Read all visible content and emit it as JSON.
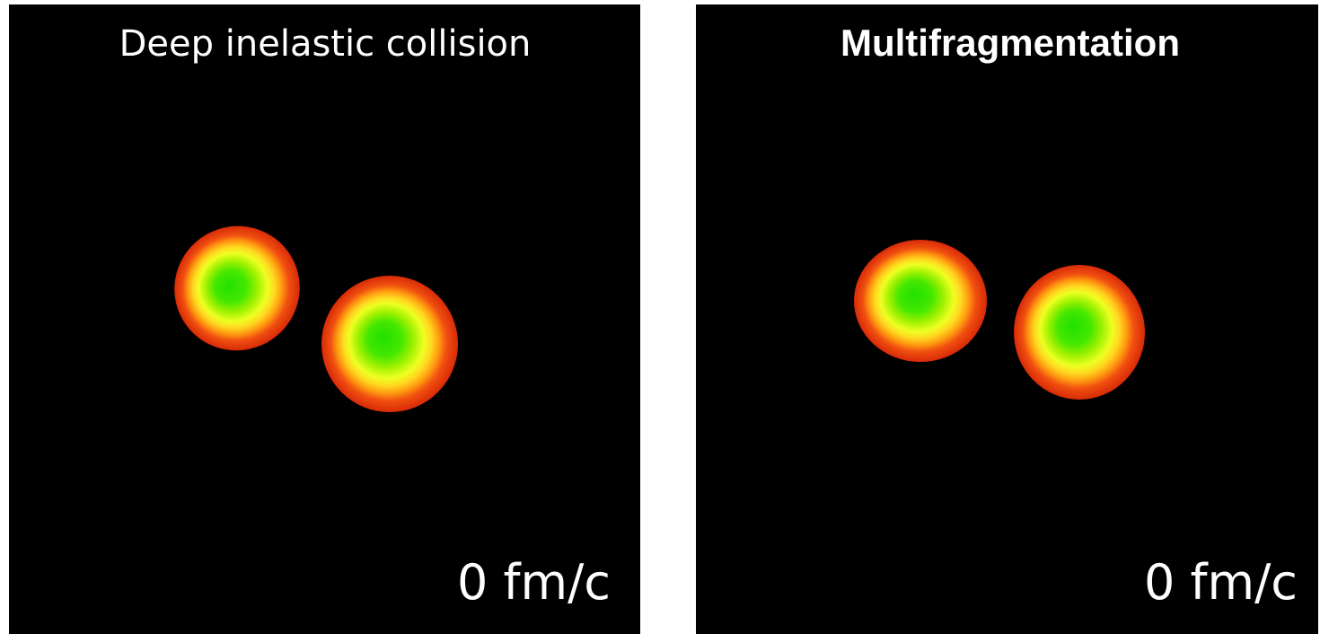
{
  "panels": [
    {
      "title": "Deep inelastic collision",
      "time": "0 fm/c"
    },
    {
      "title": "Multifragmentation",
      "time": "0 fm/c"
    }
  ]
}
